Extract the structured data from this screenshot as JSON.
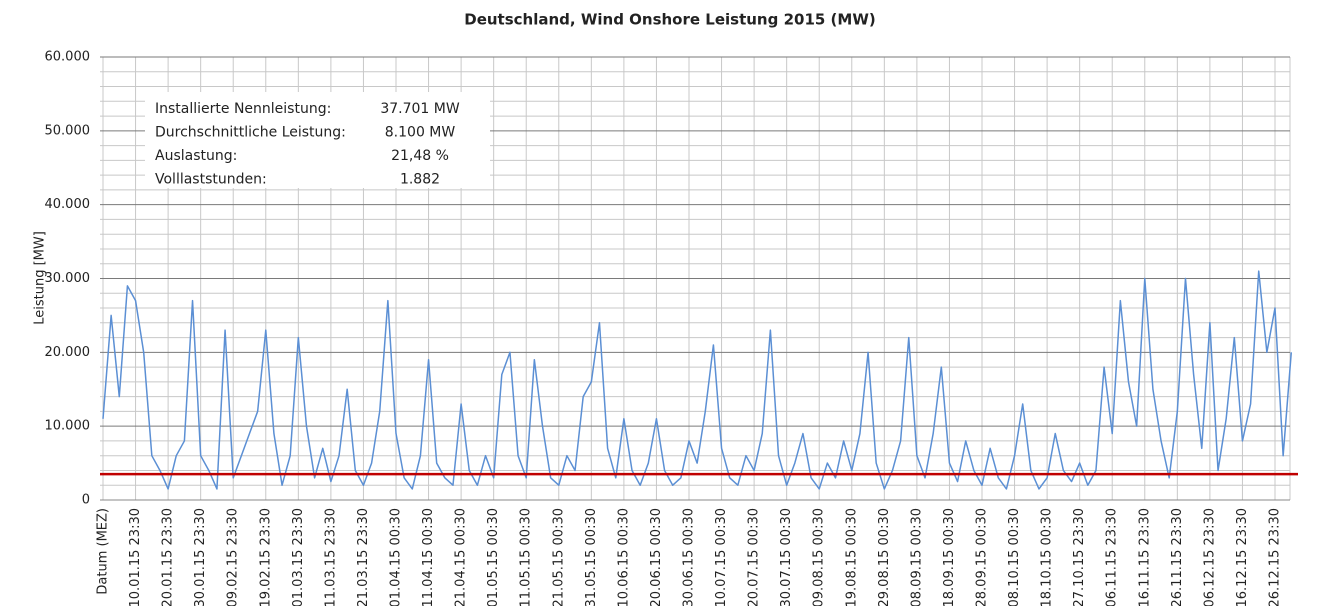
{
  "chart_data": {
    "type": "line",
    "title": "Deutschland, Wind Onshore Leistung 2015 (MW)",
    "y_label": "Leistung [MW]",
    "annotation": {
      "rows": [
        [
          "Installierte Nennleistung:",
          "37.701 MW"
        ],
        [
          "Durchschnittliche Leistung:",
          "8.100 MW"
        ],
        [
          "Auslastung:",
          "21,48 %"
        ],
        [
          "Volllaststunden:",
          "1.882"
        ]
      ]
    },
    "categories": [
      "Datum (MEZ)",
      null,
      null,
      null,
      "10.01.15 23:30",
      null,
      null,
      null,
      "20.01.15 23:30",
      null,
      null,
      null,
      "30.01.15 23:30",
      null,
      null,
      null,
      "09.02.15 23:30",
      null,
      null,
      null,
      "19.02.15 23:30",
      null,
      null,
      null,
      "01.03.15 23:30",
      null,
      null,
      null,
      "11.03.15 23:30",
      null,
      null,
      null,
      "21.03.15 23:30",
      null,
      null,
      null,
      "01.04.15 00:30",
      null,
      null,
      null,
      "11.04.15 00:30",
      null,
      null,
      null,
      "21.04.15 00:30",
      null,
      null,
      null,
      "01.05.15 00:30",
      null,
      null,
      null,
      "11.05.15 00:30",
      null,
      null,
      null,
      "21.05.15 00:30",
      null,
      null,
      null,
      "31.05.15 00:30",
      null,
      null,
      null,
      "10.06.15 00:30",
      null,
      null,
      null,
      "20.06.15 00:30",
      null,
      null,
      null,
      "30.06.15 00:30",
      null,
      null,
      null,
      "10.07.15 00:30",
      null,
      null,
      null,
      "20.07.15 00:30",
      null,
      null,
      null,
      "30.07.15 00:30",
      null,
      null,
      null,
      "09.08.15 00:30",
      null,
      null,
      null,
      "19.08.15 00:30",
      null,
      null,
      null,
      "29.08.15 00:30",
      null,
      null,
      null,
      "08.09.15 00:30",
      null,
      null,
      null,
      "18.09.15 00:30",
      null,
      null,
      null,
      "28.09.15 00:30",
      null,
      null,
      null,
      "08.10.15 00:30",
      null,
      null,
      null,
      "18.10.15 00:30",
      null,
      null,
      null,
      "27.10.15 23:30",
      null,
      null,
      null,
      "06.11.15 23:30",
      null,
      null,
      null,
      "16.11.15 23:30",
      null,
      null,
      null,
      "26.11.15 23:30",
      null,
      null,
      null,
      "06.12.15 23:30",
      null,
      null,
      null,
      "16.12.15 23:30",
      null,
      null,
      null,
      "26.12.15 23:30",
      null,
      null
    ],
    "series": [
      {
        "color": "#5b8fd4",
        "values": [
          11000,
          25000,
          14000,
          29000,
          27000,
          20000,
          6000,
          4000,
          1500,
          6000,
          8000,
          27000,
          6000,
          4000,
          1500,
          23000,
          3000,
          6000,
          9000,
          12000,
          23000,
          9000,
          2000,
          6000,
          22000,
          10000,
          3000,
          7000,
          2500,
          6000,
          15000,
          4000,
          2000,
          5000,
          12000,
          27000,
          9000,
          3000,
          1500,
          6000,
          19000,
          5000,
          3000,
          2000,
          13000,
          4000,
          2000,
          6000,
          3000,
          17000,
          20000,
          6000,
          3000,
          19000,
          10000,
          3000,
          2000,
          6000,
          4000,
          14000,
          16000,
          24000,
          7000,
          3000,
          11000,
          4000,
          2000,
          5000,
          11000,
          4000,
          2000,
          3000,
          8000,
          5000,
          12000,
          21000,
          7000,
          3000,
          2000,
          6000,
          4000,
          9000,
          23000,
          6000,
          2000,
          5000,
          9000,
          3000,
          1500,
          5000,
          3000,
          8000,
          4000,
          9000,
          20000,
          5000,
          1500,
          4000,
          8000,
          22000,
          6000,
          3000,
          9000,
          18000,
          5000,
          2500,
          8000,
          4000,
          2000,
          7000,
          3000,
          1500,
          6000,
          13000,
          4000,
          1500,
          3000,
          9000,
          4000,
          2500,
          5000,
          2000,
          4000,
          18000,
          9000,
          27000,
          16000,
          10000,
          30000,
          15000,
          8000,
          3000,
          12000,
          30000,
          17000,
          7000,
          24000,
          4000,
          11000,
          22000,
          8000,
          13000,
          31000,
          20000,
          26000,
          6000,
          20000
        ]
      }
    ],
    "reference_line": {
      "value": 3500,
      "color": "#c00000"
    },
    "ylim": [
      0,
      60000
    ],
    "yticks": [
      0,
      {
        "value": 10000,
        "label": "10.000"
      },
      {
        "value": 20000,
        "label": "20.000"
      },
      {
        "value": 30000,
        "label": "30.000"
      },
      {
        "value": 40000,
        "label": "40.000"
      },
      {
        "value": 50000,
        "label": "50.000"
      },
      {
        "value": 60000,
        "label": "60.000"
      }
    ],
    "minor_yticks": [
      2000,
      4000,
      6000,
      8000,
      12000,
      14000,
      16000,
      18000,
      22000,
      24000,
      26000,
      28000,
      32000,
      34000,
      36000,
      38000,
      42000,
      44000,
      46000,
      48000,
      52000,
      54000,
      56000,
      58000
    ],
    "grid": true
  }
}
